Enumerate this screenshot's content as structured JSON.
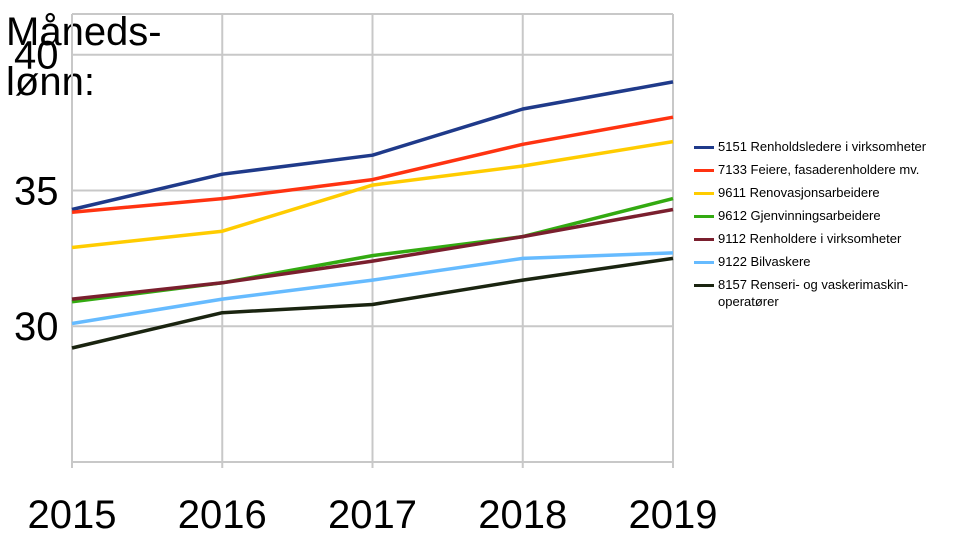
{
  "chart_data": {
    "type": "line",
    "ylabel_lines": [
      "Måneds-",
      "lønn:"
    ],
    "xlabel": "",
    "categories": [
      "2015",
      "2016",
      "2017",
      "2018",
      "2019"
    ],
    "yticks": [
      "30",
      "35",
      "40"
    ],
    "ylim": [
      25,
      41.5
    ],
    "grid": true,
    "legend_position": "right",
    "series": [
      {
        "name": "5151 Renholdsledere i virksomheter",
        "color": "#1f3a8a",
        "values": [
          34.3,
          35.6,
          36.3,
          38.0,
          39.0
        ]
      },
      {
        "name": "7133 Feiere, fasaderenholdere mv.",
        "color": "#ff3311",
        "values": [
          34.2,
          34.7,
          35.4,
          36.7,
          37.7
        ]
      },
      {
        "name": "9611 Renovasjonsarbeidere",
        "color": "#ffcc00",
        "values": [
          32.9,
          33.5,
          35.2,
          35.9,
          36.8
        ]
      },
      {
        "name": "9612 Gjenvinningsarbeidere",
        "color": "#33aa11",
        "values": [
          30.9,
          31.6,
          32.6,
          33.3,
          34.7
        ]
      },
      {
        "name": "9112 Renholdere i virksomheter",
        "color": "#7a1f2e",
        "values": [
          31.0,
          31.6,
          32.4,
          33.3,
          34.3
        ]
      },
      {
        "name": "9122 Bilvaskere",
        "color": "#66bbff",
        "values": [
          30.1,
          31.0,
          31.7,
          32.5,
          32.7
        ]
      },
      {
        "name": "8157 Renseri- og vaskerimaskin-operatører",
        "color": "#1a2410",
        "values": [
          29.2,
          30.5,
          30.8,
          31.7,
          32.5
        ]
      }
    ]
  }
}
